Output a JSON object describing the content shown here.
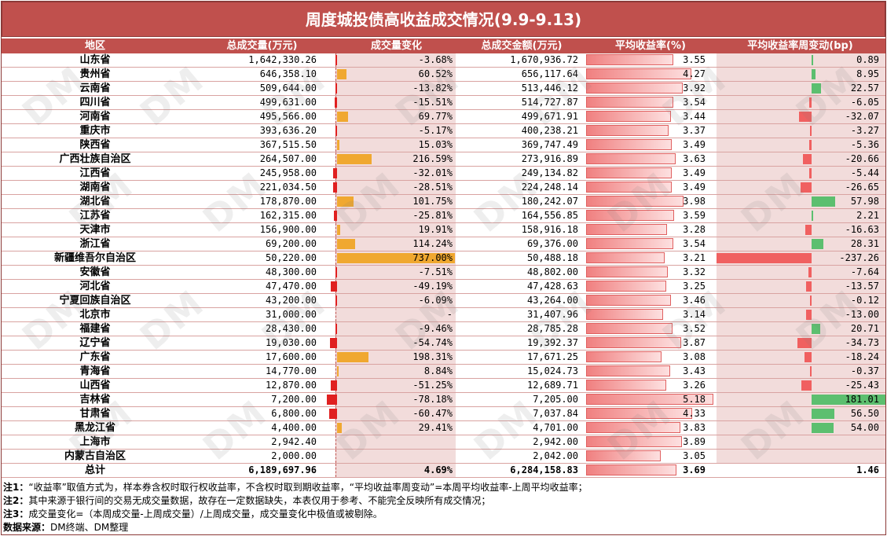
{
  "title": "周度城投债高收益成交情况(9.9-9.13)",
  "watermark": "DM",
  "headers": {
    "region": "地区",
    "volume": "总成交量(万元)",
    "volume_change": "成交量变化",
    "amount": "总成交金额(万元)",
    "yield": "平均收益率(%)",
    "yield_change": "平均收益率周变动(bp)"
  },
  "colors": {
    "header_bg": "#c0504d",
    "increase_bar": "#f0a830",
    "decrease_bar": "#e02020",
    "yield_up_bar": "#5cbf6f",
    "yield_down_bar": "#f06060",
    "cell_pink": "#f2dcdb"
  },
  "rows": [
    {
      "region": "山东省",
      "volume": "1,642,330.26",
      "vol_change": "-3.68%",
      "vol_change_pct": -3.68,
      "amount": "1,670,936.72",
      "yield": "3.55",
      "yield_num": 3.55,
      "ych": "0.89",
      "ych_num": 0.89
    },
    {
      "region": "贵州省",
      "volume": "646,358.10",
      "vol_change": "60.52%",
      "vol_change_pct": 60.52,
      "amount": "656,117.64",
      "yield": "4.27",
      "yield_num": 4.27,
      "ych": "8.95",
      "ych_num": 8.95
    },
    {
      "region": "云南省",
      "volume": "509,644.00",
      "vol_change": "-13.82%",
      "vol_change_pct": -13.82,
      "amount": "513,446.12",
      "yield": "3.92",
      "yield_num": 3.92,
      "ych": "22.57",
      "ych_num": 22.57
    },
    {
      "region": "四川省",
      "volume": "499,631.00",
      "vol_change": "-15.51%",
      "vol_change_pct": -15.51,
      "amount": "514,727.87",
      "yield": "3.54",
      "yield_num": 3.54,
      "ych": "-6.05",
      "ych_num": -6.05
    },
    {
      "region": "河南省",
      "volume": "495,566.00",
      "vol_change": "69.77%",
      "vol_change_pct": 69.77,
      "amount": "499,671.91",
      "yield": "3.44",
      "yield_num": 3.44,
      "ych": "-32.07",
      "ych_num": -32.07
    },
    {
      "region": "重庆市",
      "volume": "393,636.20",
      "vol_change": "-5.17%",
      "vol_change_pct": -5.17,
      "amount": "400,238.21",
      "yield": "3.37",
      "yield_num": 3.37,
      "ych": "-3.27",
      "ych_num": -3.27
    },
    {
      "region": "陕西省",
      "volume": "367,515.50",
      "vol_change": "15.03%",
      "vol_change_pct": 15.03,
      "amount": "369,747.49",
      "yield": "3.49",
      "yield_num": 3.49,
      "ych": "-5.36",
      "ych_num": -5.36
    },
    {
      "region": "广西壮族自治区",
      "volume": "264,507.00",
      "vol_change": "216.59%",
      "vol_change_pct": 216.59,
      "amount": "273,916.89",
      "yield": "3.63",
      "yield_num": 3.63,
      "ych": "-20.66",
      "ych_num": -20.66
    },
    {
      "region": "江西省",
      "volume": "245,958.00",
      "vol_change": "-32.01%",
      "vol_change_pct": -32.01,
      "amount": "249,134.82",
      "yield": "3.49",
      "yield_num": 3.49,
      "ych": "-5.44",
      "ych_num": -5.44
    },
    {
      "region": "湖南省",
      "volume": "221,034.50",
      "vol_change": "-28.51%",
      "vol_change_pct": -28.51,
      "amount": "224,248.14",
      "yield": "3.49",
      "yield_num": 3.49,
      "ych": "-26.65",
      "ych_num": -26.65
    },
    {
      "region": "湖北省",
      "volume": "178,870.00",
      "vol_change": "101.75%",
      "vol_change_pct": 101.75,
      "amount": "180,242.07",
      "yield": "3.98",
      "yield_num": 3.98,
      "ych": "57.98",
      "ych_num": 57.98
    },
    {
      "region": "江苏省",
      "volume": "162,315.00",
      "vol_change": "-25.81%",
      "vol_change_pct": -25.81,
      "amount": "164,556.85",
      "yield": "3.59",
      "yield_num": 3.59,
      "ych": "2.21",
      "ych_num": 2.21
    },
    {
      "region": "天津市",
      "volume": "156,900.00",
      "vol_change": "19.91%",
      "vol_change_pct": 19.91,
      "amount": "158,916.18",
      "yield": "3.28",
      "yield_num": 3.28,
      "ych": "-16.63",
      "ych_num": -16.63
    },
    {
      "region": "浙江省",
      "volume": "69,200.00",
      "vol_change": "114.24%",
      "vol_change_pct": 114.24,
      "amount": "69,376.00",
      "yield": "3.54",
      "yield_num": 3.54,
      "ych": "28.31",
      "ych_num": 28.31
    },
    {
      "region": "新疆维吾尔自治区",
      "volume": "50,220.00",
      "vol_change": "737.00%",
      "vol_change_pct": 737.0,
      "amount": "50,488.18",
      "yield": "3.21",
      "yield_num": 3.21,
      "ych": "-237.26",
      "ych_num": -237.26
    },
    {
      "region": "安徽省",
      "volume": "48,300.00",
      "vol_change": "-7.51%",
      "vol_change_pct": -7.51,
      "amount": "48,802.00",
      "yield": "3.32",
      "yield_num": 3.32,
      "ych": "-7.64",
      "ych_num": -7.64
    },
    {
      "region": "河北省",
      "volume": "47,470.00",
      "vol_change": "-49.19%",
      "vol_change_pct": -49.19,
      "amount": "47,428.63",
      "yield": "3.25",
      "yield_num": 3.25,
      "ych": "-13.57",
      "ych_num": -13.57
    },
    {
      "region": "宁夏回族自治区",
      "volume": "43,200.00",
      "vol_change": "-6.09%",
      "vol_change_pct": -6.09,
      "amount": "43,264.00",
      "yield": "3.46",
      "yield_num": 3.46,
      "ych": "-0.12",
      "ych_num": -0.12
    },
    {
      "region": "北京市",
      "volume": "31,000.00",
      "vol_change": "-",
      "vol_change_pct": 0,
      "amount": "31,407.96",
      "yield": "3.14",
      "yield_num": 3.14,
      "ych": "-13.00",
      "ych_num": -13.0
    },
    {
      "region": "福建省",
      "volume": "28,430.00",
      "vol_change": "-9.46%",
      "vol_change_pct": -9.46,
      "amount": "28,785.28",
      "yield": "3.52",
      "yield_num": 3.52,
      "ych": "20.71",
      "ych_num": 20.71
    },
    {
      "region": "辽宁省",
      "volume": "19,030.00",
      "vol_change": "-54.74%",
      "vol_change_pct": -54.74,
      "amount": "19,392.37",
      "yield": "3.87",
      "yield_num": 3.87,
      "ych": "-34.73",
      "ych_num": -34.73
    },
    {
      "region": "广东省",
      "volume": "17,600.00",
      "vol_change": "198.31%",
      "vol_change_pct": 198.31,
      "amount": "17,671.25",
      "yield": "3.08",
      "yield_num": 3.08,
      "ych": "-18.24",
      "ych_num": -18.24
    },
    {
      "region": "青海省",
      "volume": "14,770.00",
      "vol_change": "8.84%",
      "vol_change_pct": 8.84,
      "amount": "15,024.73",
      "yield": "3.43",
      "yield_num": 3.43,
      "ych": "-0.37",
      "ych_num": -0.37
    },
    {
      "region": "山西省",
      "volume": "12,870.00",
      "vol_change": "-51.25%",
      "vol_change_pct": -51.25,
      "amount": "12,689.71",
      "yield": "3.26",
      "yield_num": 3.26,
      "ych": "-25.43",
      "ych_num": -25.43
    },
    {
      "region": "吉林省",
      "volume": "7,200.00",
      "vol_change": "-78.18%",
      "vol_change_pct": -78.18,
      "amount": "7,205.00",
      "yield": "5.18",
      "yield_num": 5.18,
      "ych": "181.01",
      "ych_num": 181.01
    },
    {
      "region": "甘肃省",
      "volume": "6,800.00",
      "vol_change": "-60.47%",
      "vol_change_pct": -60.47,
      "amount": "7,037.84",
      "yield": "4.33",
      "yield_num": 4.33,
      "ych": "56.50",
      "ych_num": 56.5
    },
    {
      "region": "黑龙江省",
      "volume": "4,400.00",
      "vol_change": "29.41%",
      "vol_change_pct": 29.41,
      "amount": "4,701.00",
      "yield": "3.83",
      "yield_num": 3.83,
      "ych": "54.00",
      "ych_num": 54.0
    },
    {
      "region": "上海市",
      "volume": "2,942.40",
      "vol_change": "",
      "vol_change_pct": 0,
      "amount": "2,942.00",
      "yield": "3.89",
      "yield_num": 3.89,
      "ych": "",
      "ych_num": 0
    },
    {
      "region": "内蒙古自治区",
      "volume": "2,000.00",
      "vol_change": "",
      "vol_change_pct": 0,
      "amount": "2,042.00",
      "yield": "3.05",
      "yield_num": 3.05,
      "ych": "",
      "ych_num": 0
    }
  ],
  "total": {
    "region": "总计",
    "volume": "6,189,697.96",
    "vol_change": "4.69%",
    "amount": "6,284,158.83",
    "yield": "3.69",
    "yield_num": 3.69,
    "ych": "1.46"
  },
  "notes": [
    {
      "label": "注1：",
      "text": "“收益率”取值方式为，样本券含权时取行权收益率，不含权时取到期收益率，“平均收益率周变动”=本周平均收益率-上周平均收益率；"
    },
    {
      "label": "注2：",
      "text": "其中来源于银行间的交易无成交量数据，故存在一定数据缺失，本表仅用于参考、不能完全反映所有成交情况；"
    },
    {
      "label": "注3：",
      "text": "成交量变化=（本周成交量-上周成交量）/上周成交量，成交量变化中极值或被剔除。"
    },
    {
      "label": "数据来源：",
      "text": "DM终端、DM整理"
    }
  ]
}
